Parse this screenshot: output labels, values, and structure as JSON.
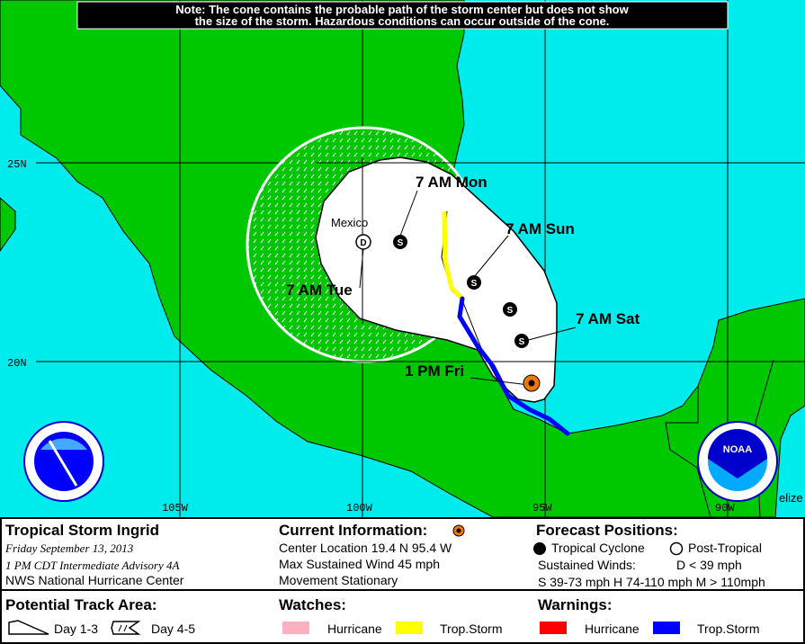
{
  "note": {
    "line1": "Note: The cone contains the probable path of the storm center but does not show",
    "line2": "the size of the storm. Hazardous conditions can occur outside of the cone."
  },
  "colors": {
    "ocean": "#00ECEC",
    "land": "#00C800",
    "cone": "#FFFFFF",
    "current_storm": "#F07800",
    "ts_watch": "#FFFF00",
    "ts_warning": "#0000FF",
    "hurricane_watch": "#FFB0C0",
    "hurricane_warning": "#FF0000"
  },
  "map": {
    "grid_labels": {
      "lat_25": "25N",
      "lat_20": "20N",
      "lon_105": "105W",
      "lon_100": "100W",
      "lon_95": "95W",
      "lon_90": "90W"
    },
    "place_labels": {
      "mexico": "Mexico",
      "belize": "elize"
    },
    "positions": [
      {
        "label": "1 PM Fri",
        "symbol": "S",
        "type": "current"
      },
      {
        "label": "7 AM Sat",
        "symbol": "S",
        "type": "tropical"
      },
      {
        "label": "",
        "symbol": "S",
        "type": "tropical"
      },
      {
        "label": "7 AM Sun",
        "symbol": "S",
        "type": "tropical"
      },
      {
        "label": "7 AM Mon",
        "symbol": "S",
        "type": "tropical"
      },
      {
        "label": "7 AM Tue",
        "symbol": "D",
        "type": "post-tropical"
      }
    ],
    "logos": {
      "nws": "National Weather Service",
      "noaa": "NOAA"
    }
  },
  "legend": {
    "storm_name": "Tropical Storm Ingrid",
    "date": "Friday   September 13, 2013",
    "advisory": "1 PM CDT Intermediate Advisory 4A",
    "center": "NWS National Hurricane Center",
    "current_title": "Current Information:",
    "center_location": "Center Location 19.4 N  95.4 W",
    "max_wind": "Max Sustained Wind  45 mph",
    "movement": "Movement  Stationary",
    "forecast_title": "Forecast Positions:",
    "tropical_cyclone": "Tropical Cyclone",
    "post_tropical": "Post-Tropical",
    "sustained_winds": "Sustained Winds:",
    "d_def": "D  < 39 mph",
    "shm_def": "S  39-73 mph  H  74-110 mph  M  > 110mph",
    "track_title": "Potential Track Area:",
    "day13": "Day 1-3",
    "day45": "Day 4-5",
    "watches_title": "Watches:",
    "watch_hurricane": "Hurricane",
    "watch_ts": "Trop.Storm",
    "warnings_title": "Warnings:",
    "warning_hurricane": "Hurricane",
    "warning_ts": "Trop.Storm"
  }
}
